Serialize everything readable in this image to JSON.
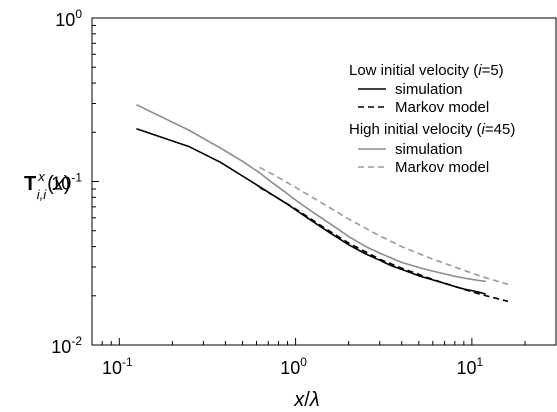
{
  "chart_data": {
    "type": "line",
    "x_scale": "log",
    "y_scale": "log",
    "xlim": [
      0.07,
      30
    ],
    "ylim": [
      0.01,
      1
    ],
    "grid": false,
    "x_ticks": [
      0.1,
      1,
      10
    ],
    "y_ticks": [
      0.01,
      0.1,
      1
    ],
    "x_tick_labels": [
      {
        "base": "10",
        "exp": "-1"
      },
      {
        "base": "10",
        "exp": "0"
      },
      {
        "base": "10",
        "exp": "1"
      }
    ],
    "y_tick_labels": [
      {
        "base": "10",
        "exp": "-2"
      },
      {
        "base": "10",
        "exp": "-1"
      },
      {
        "base": "10",
        "exp": "0"
      }
    ],
    "xlabel": {
      "italic_x": "x",
      "slash": "/",
      "lambda": "λ"
    },
    "ylabel": {
      "T": "T",
      "sup": "x",
      "sub": "i,i",
      "open": "(",
      "x": "x",
      "close": ")"
    },
    "legend": {
      "position": "top-right",
      "groups": [
        {
          "heading_pre": "Low initial velocity (",
          "heading_i": "i",
          "heading_post": "=5)",
          "entries": [
            {
              "label": "simulation",
              "color": "#000000",
              "dash": false
            },
            {
              "label": "Markov model",
              "color": "#000000",
              "dash": true
            }
          ]
        },
        {
          "heading_pre": "High initial velocity (",
          "heading_i": "i",
          "heading_post": "=45)",
          "entries": [
            {
              "label": "simulation",
              "color": "#8c8c8c",
              "dash": false
            },
            {
              "label": "Markov model",
              "color": "#9a9a9a",
              "dash": true
            }
          ]
        }
      ]
    },
    "series": [
      {
        "name": "Low initial velocity (i=5) simulation",
        "color": "#000000",
        "dash": false,
        "x": [
          0.125,
          0.25,
          0.375,
          0.5,
          0.625,
          0.75,
          0.875,
          1.0,
          1.25,
          1.5,
          1.75,
          2.0,
          2.5,
          3.0,
          3.5,
          4.0,
          5.0,
          6.0,
          7.0,
          8.0,
          9.0,
          10.0,
          11.0,
          12.0
        ],
        "y": [
          0.21,
          0.163,
          0.131,
          0.108,
          0.093,
          0.082,
          0.074,
          0.067,
          0.057,
          0.05,
          0.045,
          0.041,
          0.036,
          0.033,
          0.0305,
          0.029,
          0.0265,
          0.025,
          0.0238,
          0.0228,
          0.022,
          0.0215,
          0.021,
          0.0205
        ]
      },
      {
        "name": "Low initial velocity (i=5) Markov model",
        "color": "#000000",
        "dash": true,
        "x": [
          0.625,
          0.75,
          1.0,
          1.5,
          2.0,
          3.0,
          4.0,
          6.0,
          8.0,
          11.0,
          16.0
        ],
        "y": [
          0.092,
          0.082,
          0.068,
          0.051,
          0.042,
          0.0335,
          0.0295,
          0.0252,
          0.0228,
          0.0205,
          0.0185
        ]
      },
      {
        "name": "High initial velocity (i=45) simulation",
        "color": "#8c8c8c",
        "dash": false,
        "x": [
          0.125,
          0.25,
          0.375,
          0.5,
          0.625,
          0.75,
          0.875,
          1.0,
          1.25,
          1.5,
          1.75,
          2.0,
          2.5,
          3.0,
          3.5,
          4.0,
          5.0,
          6.0,
          7.0,
          8.0,
          9.0,
          10.0,
          11.0,
          12.0
        ],
        "y": [
          0.295,
          0.205,
          0.16,
          0.133,
          0.113,
          0.097,
          0.086,
          0.077,
          0.065,
          0.057,
          0.051,
          0.046,
          0.04,
          0.0365,
          0.034,
          0.032,
          0.0298,
          0.0283,
          0.0272,
          0.0263,
          0.0257,
          0.0252,
          0.0248,
          0.0245
        ]
      },
      {
        "name": "High initial velocity (i=45) Markov model",
        "color": "#9a9a9a",
        "dash": true,
        "x": [
          0.625,
          0.75,
          1.0,
          1.5,
          2.0,
          3.0,
          4.0,
          6.0,
          8.0,
          11.0,
          16.0
        ],
        "y": [
          0.122,
          0.11,
          0.092,
          0.071,
          0.059,
          0.0465,
          0.04,
          0.0335,
          0.03,
          0.0265,
          0.0235
        ]
      }
    ]
  }
}
